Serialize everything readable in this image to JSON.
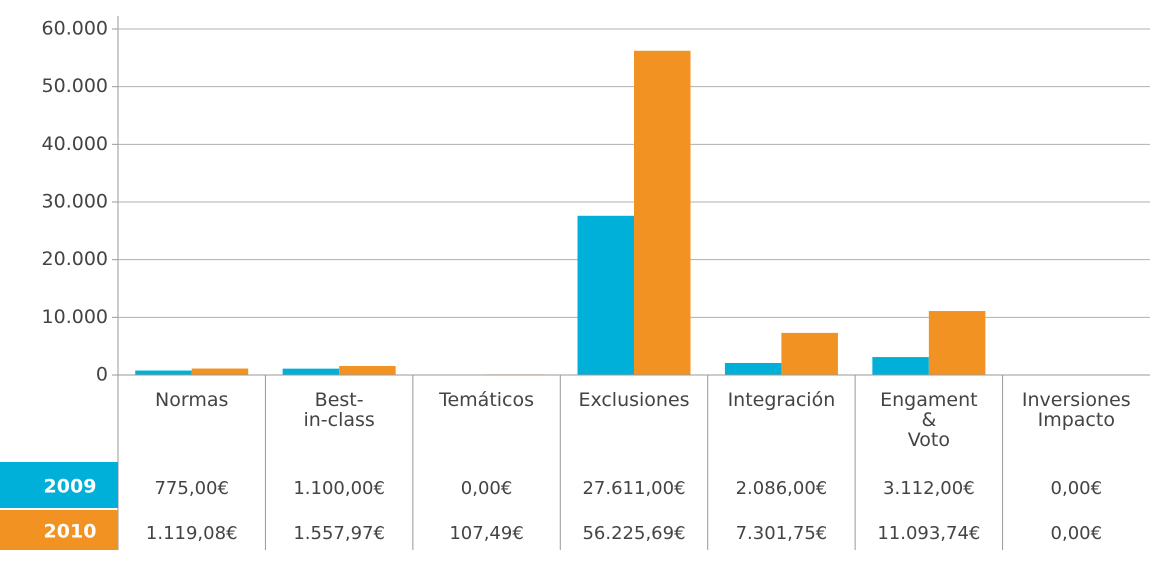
{
  "chart_data": {
    "type": "bar",
    "categories": [
      "Normas",
      "Best-\nin-class",
      "Temáticos",
      "Exclusiones",
      "Integración",
      "Engament\n&\nVoto",
      "Inversiones\nImpacto"
    ],
    "series": [
      {
        "name": "2009",
        "color": "#00b0d8",
        "values": [
          775,
          1100,
          0,
          27611,
          2086,
          3112,
          0
        ],
        "value_labels": [
          "775,00€",
          "1.100,00€",
          "0,00€",
          "27.611,00€",
          "2.086,00€",
          "3.112,00€",
          "0,00€"
        ]
      },
      {
        "name": "2010",
        "color": "#f29222",
        "values": [
          1119.08,
          1557.97,
          107.49,
          56225.69,
          7301.75,
          11093.74,
          0
        ],
        "value_labels": [
          "1.119,08€",
          "1.557,97€",
          "107,49€",
          "56.225,69€",
          "7.301,75€",
          "11.093,74€",
          "0,00€"
        ]
      }
    ],
    "ylim": [
      0,
      60000
    ],
    "yticks": [
      0,
      {
        "value": 10000,
        "label": "10.000"
      },
      {
        "value": 20000,
        "label": "20.000"
      },
      {
        "value": 30000,
        "label": "30.000"
      },
      {
        "value": 40000,
        "label": "40.000"
      },
      {
        "value": 50000,
        "label": "50.000"
      },
      {
        "value": 60000,
        "label": "60.000"
      }
    ],
    "grid": true
  }
}
